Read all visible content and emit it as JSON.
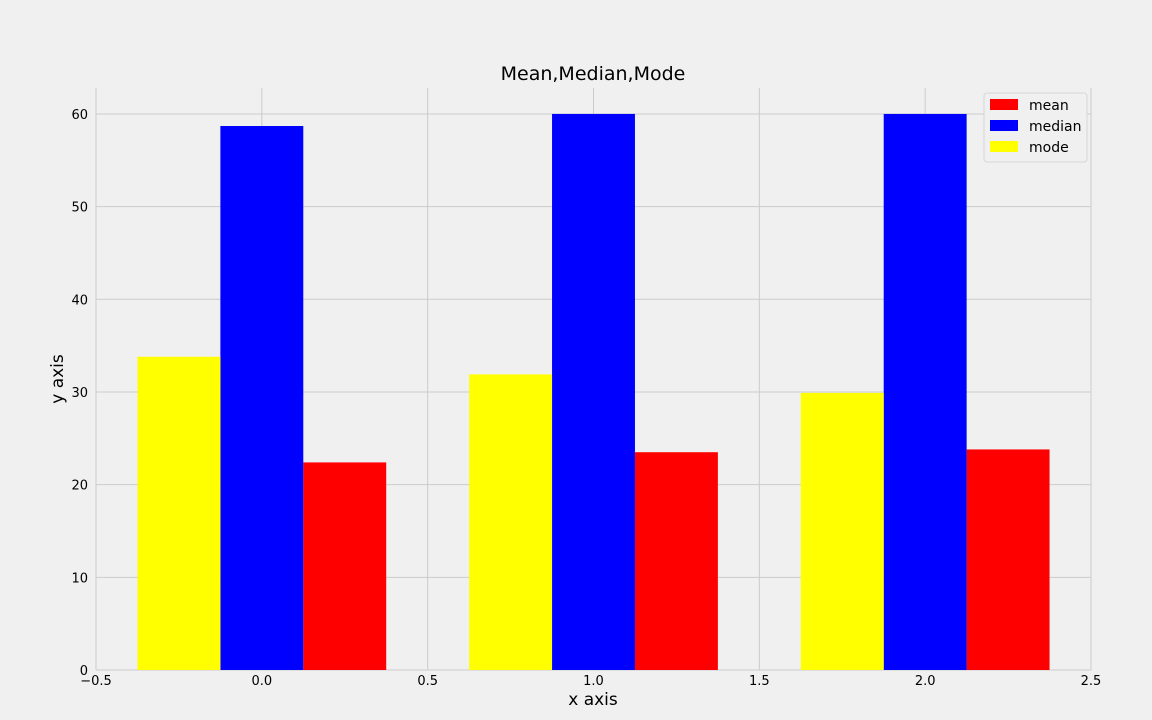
{
  "chart_data": {
    "type": "bar",
    "title": "Mean,Median,Mode",
    "xlabel": "x axis",
    "ylabel": "y axis",
    "x": [
      0,
      1,
      2
    ],
    "series": [
      {
        "name": "mean",
        "color": "#ff0000",
        "offset": 0.25,
        "values": [
          22.4,
          23.5,
          23.8
        ]
      },
      {
        "name": "median",
        "color": "#0000ff",
        "offset": 0.0,
        "values": [
          58.7,
          60.0,
          60.0
        ]
      },
      {
        "name": "mode",
        "color": "#ffff00",
        "offset": -0.25,
        "values": [
          33.8,
          31.9,
          29.9
        ]
      }
    ],
    "bar_width": 0.25,
    "xlim": [
      -0.5,
      2.5
    ],
    "ylim": [
      0,
      62.8
    ],
    "xticks": [
      -0.5,
      0.0,
      0.5,
      1.0,
      1.5,
      2.0,
      2.5
    ],
    "xtick_labels": [
      "−0.5",
      "0.0",
      "0.5",
      "1.0",
      "1.5",
      "2.0",
      "2.5"
    ],
    "yticks": [
      0,
      10,
      20,
      30,
      40,
      50,
      60
    ],
    "ytick_labels": [
      "0",
      "10",
      "20",
      "30",
      "40",
      "50",
      "60"
    ],
    "grid": true,
    "legend_position": "top-right",
    "colors": {
      "background": "#f0f0f0",
      "grid": "#cbcbcb"
    }
  }
}
